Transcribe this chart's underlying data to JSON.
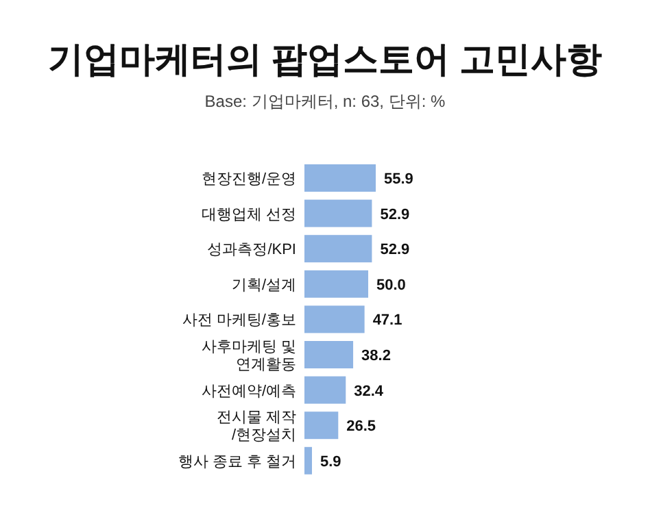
{
  "chart_data": {
    "type": "bar",
    "orientation": "horizontal",
    "title": "기업마케터의 팝업스토어 고민사항",
    "subtitle": "Base: 기업마케터, n: 63, 단위: %",
    "categories": [
      "현장진행/운영",
      "대행업체 선정",
      "성과측정/KPI",
      "기획/설계",
      "사전 마케팅/홍보",
      "사후마케팅 및\n연계활동",
      "사전예약/예측",
      "전시물 제작\n/현장설치",
      "행사 종료 후 철거"
    ],
    "values": [
      55.9,
      52.9,
      52.9,
      50.0,
      47.1,
      38.2,
      32.4,
      26.5,
      5.9
    ],
    "value_labels": [
      "55.9",
      "52.9",
      "52.9",
      "50.0",
      "47.1",
      "38.2",
      "32.4",
      "26.5",
      "5.9"
    ],
    "color": "#8fb4e3"
  }
}
